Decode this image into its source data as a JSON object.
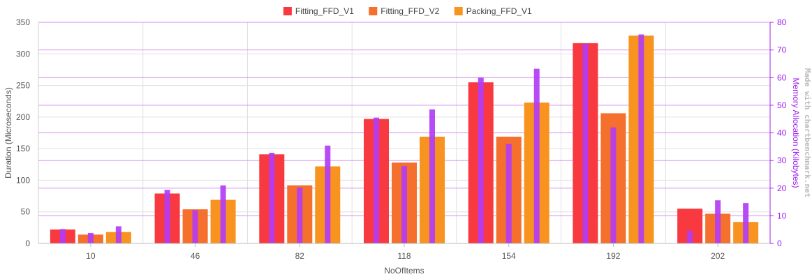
{
  "chart_data": {
    "type": "bar",
    "categories": [
      "10",
      "46",
      "82",
      "118",
      "154",
      "192",
      "202"
    ],
    "series": [
      {
        "name": "Fitting_FFD_V1",
        "color": "#f8393f",
        "values": [
          22,
          79,
          141,
          197,
          255,
          317,
          55
        ]
      },
      {
        "name": "Fitting_FFD_V2",
        "color": "#f4702c",
        "values": [
          14,
          54,
          92,
          128,
          169,
          206,
          47
        ]
      },
      {
        "name": "Packing_FFD_V1",
        "color": "#f8931f",
        "values": [
          18,
          69,
          122,
          169,
          223,
          329,
          34
        ]
      }
    ],
    "secondary_series": {
      "name": "Memory Allocation",
      "color": "#b23cf5",
      "values": [
        [
          5.2,
          19.4,
          32.8,
          45.5,
          60.0,
          72.2,
          4.6
        ],
        [
          3.8,
          12.0,
          20.2,
          28.0,
          36.0,
          42.0,
          15.6
        ],
        [
          6.2,
          21.0,
          35.4,
          48.5,
          63.2,
          75.6,
          14.6
        ]
      ]
    },
    "xlabel": "NoOfItems",
    "ylabel": "Duration (Microseconds)",
    "y2label": "Memory Allocation (Kilobytes)",
    "ylim": [
      0,
      350
    ],
    "y2lim": [
      0,
      80
    ],
    "yticks": [
      "0",
      "50",
      "100",
      "150",
      "200",
      "250",
      "300",
      "350"
    ],
    "y2ticks": [
      "0",
      "10",
      "20",
      "30",
      "40",
      "50",
      "60",
      "70",
      "80"
    ],
    "grid": true,
    "legend_position": "top-center",
    "watermark": "Made with chartbenchmark.net",
    "axis_color": "#a020f0"
  }
}
